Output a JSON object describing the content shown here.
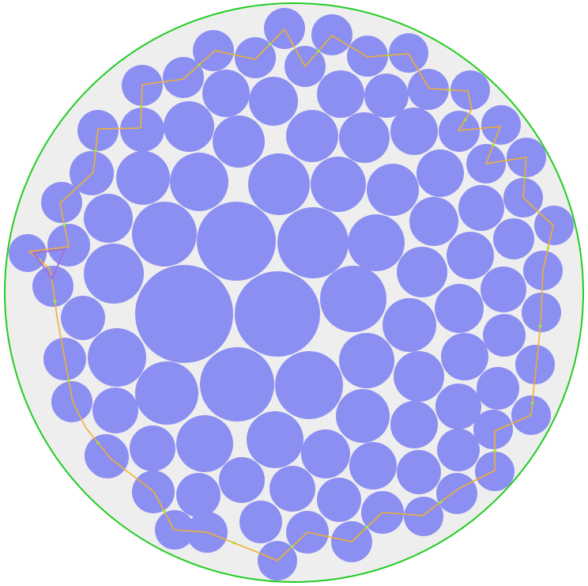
{
  "diagram": {
    "kind": "circle-packing",
    "colors": {
      "background": "#ffffff",
      "container_fill": "#eeeeee",
      "container_stroke": "#22cc22",
      "circle_fill": "#8c8ff2",
      "path_stroke": "#f0b030",
      "path_marker": "#99ee33",
      "triangle_stroke": "#a070d0"
    }
  }
}
